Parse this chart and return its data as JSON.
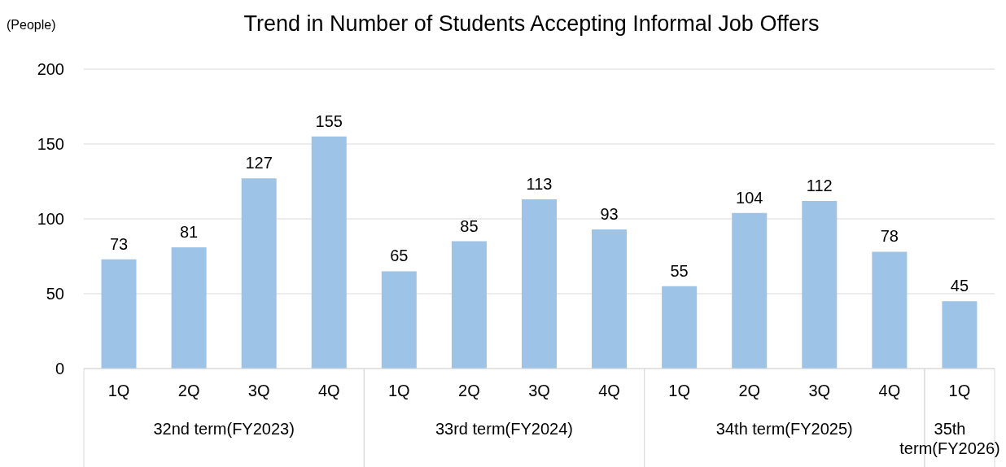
{
  "chart_data": {
    "type": "bar",
    "title": "Trend in Number of Students Accepting Informal Job Offers",
    "ylabel": "(People)",
    "categories": [
      "1Q",
      "2Q",
      "3Q",
      "4Q",
      "1Q",
      "2Q",
      "3Q",
      "4Q",
      "1Q",
      "2Q",
      "3Q",
      "4Q",
      "1Q"
    ],
    "values": [
      73,
      81,
      127,
      155,
      65,
      85,
      113,
      93,
      55,
      104,
      112,
      78,
      45
    ],
    "color": "#9dc3e6",
    "ylim": [
      0,
      200
    ],
    "yticks": [
      0,
      50,
      100,
      150,
      200
    ],
    "grid": "y",
    "data_labels": true,
    "annotations": [
      "32nd term(FY2023)",
      "33rd term(FY2024)",
      "34th term(FY2025)",
      "35th term(FY2026)"
    ]
  }
}
